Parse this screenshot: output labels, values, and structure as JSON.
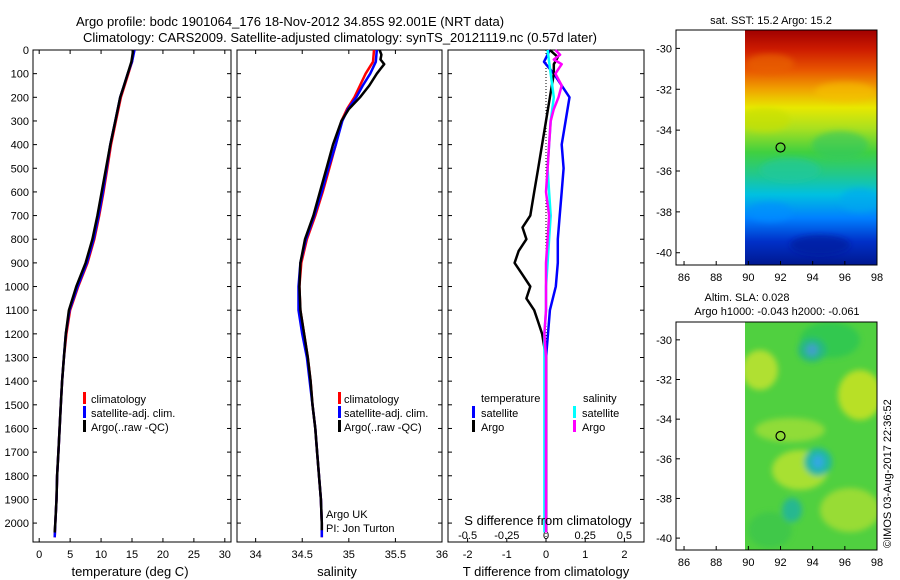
{
  "header": {
    "title_line1": "Argo profile: bodc 1901064_176 18-Nov-2012 34.85S 92.001E (NRT data)",
    "title_line2": "Climatology: CARS2009. Satellite-adjusted climatology: synTS_20121119.nc (0.57d later)"
  },
  "colors": {
    "climatology": "#ff0000",
    "satellite": "#0000ff",
    "argo": "#000000",
    "satellite_s": "#00ffff",
    "argo_s": "#ff00ff"
  },
  "legend": {
    "temp_panel": [
      "climatology",
      "satellite-adj. clim.",
      "Argo(..raw -QC)"
    ],
    "sal_panel": [
      "climatology",
      "satellite-adj. clim.",
      "Argo(..raw -QC)"
    ],
    "diff_temperature_title": "temperature",
    "diff_salinity_title": "salinity",
    "diff_satellite": "satellite",
    "diff_argo": "Argo"
  },
  "credit": {
    "line1": "Argo UK",
    "line2": "PI: Jon Turton"
  },
  "map1": {
    "title": "sat. SST: 15.2 Argo: 15.2"
  },
  "map2": {
    "title_line1": "Altim. SLA: 0.028",
    "title_line2": "Argo h1000: -0.043 h2000: -0.061"
  },
  "watermark": "©IMOS 03-Aug-2017 22:36:52",
  "chart_data": [
    {
      "type": "line",
      "id": "temperature",
      "xlabel": "temperature (deg C)",
      "ylabel": "",
      "xlim": [
        -1,
        31
      ],
      "ylim": [
        2080,
        0
      ],
      "xticks": [
        0,
        5,
        10,
        15,
        20,
        25,
        30
      ],
      "yticks": [
        0,
        100,
        200,
        300,
        400,
        500,
        600,
        700,
        800,
        900,
        1000,
        1100,
        1200,
        1300,
        1400,
        1500,
        1600,
        1700,
        1800,
        1900,
        2000
      ],
      "series": [
        {
          "name": "climatology",
          "color": "#ff0000",
          "depth": [
            0,
            50,
            100,
            150,
            200,
            300,
            400,
            500,
            600,
            700,
            800,
            900,
            1000,
            1100,
            1200,
            1300,
            1400,
            1500,
            1600,
            1700,
            1800,
            1900,
            2000,
            2060
          ],
          "values": [
            15.3,
            15.0,
            14.4,
            13.8,
            13.2,
            12.4,
            11.6,
            11.0,
            10.4,
            9.7,
            8.9,
            7.8,
            6.3,
            5.0,
            4.4,
            4.0,
            3.7,
            3.5,
            3.3,
            3.1,
            2.9,
            2.8,
            2.6,
            2.5
          ]
        },
        {
          "name": "satellite-adj. clim.",
          "color": "#0000ff",
          "depth": [
            0,
            50,
            100,
            150,
            200,
            300,
            400,
            500,
            600,
            700,
            800,
            900,
            1000,
            1100,
            1200,
            1300,
            1400,
            1500,
            1600,
            1700,
            1800,
            1900,
            2000,
            2060
          ],
          "values": [
            15.4,
            15.0,
            14.3,
            13.7,
            13.1,
            12.3,
            11.5,
            10.9,
            10.3,
            9.6,
            8.8,
            7.7,
            6.2,
            4.9,
            4.3,
            4.0,
            3.7,
            3.5,
            3.3,
            3.1,
            2.9,
            2.8,
            2.6,
            2.5
          ]
        },
        {
          "name": "Argo(..raw -QC)",
          "color": "#000000",
          "depth": [
            0,
            50,
            100,
            150,
            200,
            300,
            400,
            500,
            600,
            700,
            800,
            900,
            1000,
            1100,
            1200,
            1300,
            1400,
            1500,
            1600,
            1700,
            1800,
            1900,
            2000,
            2040
          ],
          "values": [
            15.2,
            14.9,
            14.3,
            13.7,
            13.1,
            12.3,
            11.5,
            10.8,
            10.1,
            9.4,
            8.6,
            7.5,
            6.0,
            4.8,
            4.3,
            4.0,
            3.7,
            3.5,
            3.3,
            3.1,
            2.9,
            2.8,
            2.6,
            2.5
          ]
        }
      ]
    },
    {
      "type": "line",
      "id": "salinity",
      "xlabel": "salinity",
      "ylabel": "",
      "xlim": [
        33.8,
        36.0
      ],
      "ylim": [
        2080,
        0
      ],
      "xticks": [
        34,
        34.5,
        35,
        35.5,
        36
      ],
      "series": [
        {
          "name": "climatology",
          "color": "#ff0000",
          "depth": [
            0,
            50,
            100,
            150,
            200,
            250,
            300,
            400,
            500,
            600,
            700,
            800,
            900,
            1000,
            1100,
            1200,
            1300,
            1400,
            1500,
            1600,
            1700,
            1800,
            1900,
            2000,
            2060
          ],
          "values": [
            35.27,
            35.26,
            35.18,
            35.12,
            35.06,
            34.98,
            34.92,
            34.86,
            34.79,
            34.72,
            34.64,
            34.55,
            34.49,
            34.47,
            34.48,
            34.52,
            34.56,
            34.59,
            34.61,
            34.64,
            34.66,
            34.68,
            34.7,
            34.71,
            34.71
          ]
        },
        {
          "name": "satellite-adj. clim.",
          "color": "#0000ff",
          "depth": [
            0,
            50,
            100,
            150,
            200,
            250,
            300,
            400,
            500,
            600,
            700,
            800,
            900,
            1000,
            1100,
            1200,
            1300,
            1400,
            1500,
            1600,
            1700,
            1800,
            1900,
            2000,
            2060
          ],
          "values": [
            35.3,
            35.29,
            35.23,
            35.15,
            35.08,
            34.99,
            34.93,
            34.86,
            34.78,
            34.71,
            34.63,
            34.54,
            34.48,
            34.46,
            34.46,
            34.5,
            34.55,
            34.58,
            34.61,
            34.64,
            34.66,
            34.68,
            34.7,
            34.71,
            34.71
          ]
        },
        {
          "name": "Argo(..raw -QC)",
          "color": "#000000",
          "depth": [
            0,
            20,
            40,
            60,
            80,
            100,
            150,
            200,
            250,
            300,
            400,
            500,
            600,
            700,
            800,
            900,
            1000,
            1100,
            1200,
            1300,
            1400,
            1500,
            1600,
            1700,
            1800,
            1900,
            2000,
            2030
          ],
          "values": [
            35.33,
            35.35,
            35.34,
            35.38,
            35.34,
            35.3,
            35.22,
            35.12,
            35.0,
            34.92,
            34.83,
            34.76,
            34.69,
            34.62,
            34.53,
            34.48,
            34.47,
            34.48,
            34.52,
            34.56,
            34.59,
            34.61,
            34.64,
            34.66,
            34.68,
            34.7,
            34.71,
            34.71
          ]
        }
      ]
    },
    {
      "type": "line",
      "id": "difference",
      "xlabel": "T difference from climatology",
      "xlabel2": "S difference from climatology",
      "xlim": [
        -2.5,
        2.5
      ],
      "ylim": [
        2080,
        0
      ],
      "xticks": [
        -2,
        -1,
        0,
        1,
        2
      ],
      "xticks_s": [
        "-0.5",
        "-0.25",
        "0",
        "0.25",
        "0.5"
      ],
      "series": [
        {
          "name": "temperature satellite",
          "color": "#0000ff",
          "depth": [
            0,
            50,
            100,
            200,
            300,
            400,
            500,
            600,
            700,
            800,
            900,
            1000,
            1100,
            1200,
            1300,
            1500,
            1700,
            1900,
            2040
          ],
          "values": [
            0.1,
            -0.05,
            0.2,
            0.6,
            0.5,
            0.4,
            0.45,
            0.4,
            0.35,
            0.3,
            0.3,
            0.25,
            0.1,
            0.05,
            0.0,
            0.0,
            0.0,
            0.0,
            0.0
          ]
        },
        {
          "name": "temperature Argo",
          "color": "#000000",
          "depth": [
            0,
            30,
            60,
            100,
            200,
            300,
            400,
            500,
            600,
            700,
            750,
            800,
            850,
            900,
            950,
            1000,
            1050,
            1100,
            1150,
            1200,
            1300,
            1500,
            1700,
            1900,
            2040
          ],
          "values": [
            0.1,
            0.3,
            0.2,
            0.2,
            0.1,
            0.0,
            -0.1,
            -0.2,
            -0.3,
            -0.4,
            -0.6,
            -0.5,
            -0.7,
            -0.8,
            -0.6,
            -0.4,
            -0.5,
            -0.3,
            -0.2,
            -0.1,
            0.0,
            0.0,
            0.0,
            0.0,
            0.0
          ]
        },
        {
          "name": "salinity satellite",
          "color": "#00ffff",
          "depth": [
            0,
            50,
            100,
            200,
            300,
            400,
            500,
            600,
            700,
            800,
            900,
            1000,
            1100,
            1200,
            1300,
            1500,
            1700,
            1900,
            2040
          ],
          "values": [
            0.01,
            0.02,
            0.03,
            0.05,
            0.03,
            0.02,
            0.01,
            0.02,
            0.03,
            0.02,
            0.01,
            0.0,
            0.0,
            -0.01,
            -0.01,
            -0.01,
            -0.01,
            -0.01,
            -0.01
          ]
        },
        {
          "name": "salinity Argo",
          "color": "#ff00ff",
          "depth": [
            0,
            20,
            40,
            60,
            80,
            100,
            150,
            200,
            250,
            300,
            400,
            500,
            600,
            700,
            800,
            900,
            1000,
            1100,
            1200,
            1300,
            1500,
            1700,
            1900,
            2040
          ],
          "values": [
            0.06,
            0.09,
            0.05,
            0.1,
            0.08,
            0.06,
            0.1,
            0.08,
            0.05,
            0.03,
            0.02,
            0.01,
            0.0,
            0.02,
            0.01,
            0.0,
            0.0,
            0.0,
            -0.01,
            0.0,
            0.0,
            0.0,
            0.0,
            0.0
          ]
        }
      ]
    },
    {
      "type": "heatmap",
      "id": "sst_map",
      "title": "sat. SST: 15.2 Argo: 15.2",
      "xlim": [
        85.5,
        98
      ],
      "ylim": [
        -40.6,
        -29.1
      ],
      "xticks": [
        86,
        88,
        90,
        92,
        94,
        96,
        98
      ],
      "yticks": [
        -30,
        -32,
        -34,
        -36,
        -38,
        -40
      ],
      "marker": {
        "lon": 92.0,
        "lat": -34.85
      },
      "data_lon_start": 90
    },
    {
      "type": "heatmap",
      "id": "sla_map",
      "title": "Altim. SLA: 0.028",
      "xlim": [
        85.5,
        98
      ],
      "ylim": [
        -40.6,
        -29.1
      ],
      "xticks": [
        86,
        88,
        90,
        92,
        94,
        96,
        98
      ],
      "yticks": [
        -30,
        -32,
        -34,
        -36,
        -38,
        -40
      ],
      "marker": {
        "lon": 92.0,
        "lat": -34.85
      },
      "data_lon_start": 90
    }
  ]
}
